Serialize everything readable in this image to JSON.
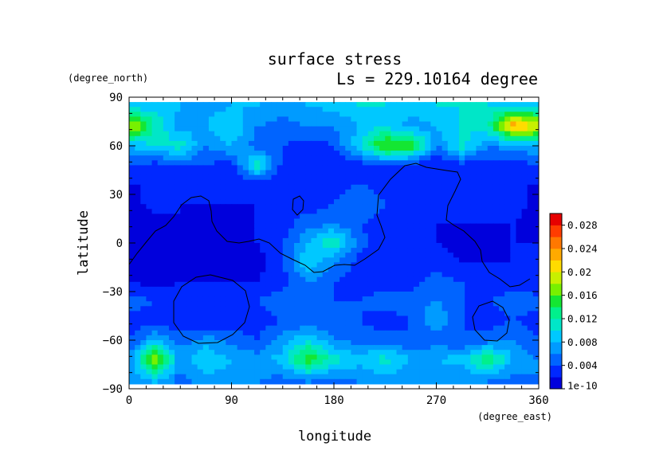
{
  "chart_data": {
    "type": "heatmap",
    "title": "surface stress",
    "subtitle": "Ls = 229.10164 degree",
    "xlabel": "longitude",
    "ylabel": "latitude",
    "x_unit": "(degree_east)",
    "y_unit": "(degree_north)",
    "xlim": [
      0,
      360
    ],
    "ylim": [
      -90,
      90
    ],
    "xticks": [
      "0",
      "90",
      "180",
      "270",
      "360"
    ],
    "yticks": [
      "90",
      "60",
      "30",
      "0",
      "−30",
      "−60",
      "−90"
    ],
    "grid": false,
    "colorbar": {
      "ticks": [
        "0.028",
        "0.024",
        "0.02",
        "0.016",
        "0.012",
        "0.008",
        "0.004",
        "1e-10"
      ],
      "min": 0,
      "max": 0.03,
      "colors": [
        "#0000dc",
        "#0028ff",
        "#0064ff",
        "#009bff",
        "#00c8ff",
        "#00e6c8",
        "#00f08c",
        "#14e632",
        "#78f000",
        "#c8f000",
        "#ffdc00",
        "#ffaa00",
        "#ff7800",
        "#ff3c00",
        "#e60000"
      ]
    },
    "grid_lon": [
      0,
      22.5,
      45,
      67.5,
      90,
      112.5,
      135,
      157.5,
      180,
      202.5,
      225,
      247.5,
      270,
      292.5,
      315,
      337.5,
      360
    ],
    "grid_lat": [
      85,
      72,
      60,
      48,
      36,
      24,
      12,
      0,
      -12,
      -24,
      -36,
      -48,
      -60,
      -72,
      -85
    ],
    "values": [
      [
        0.008,
        0.009,
        0.008,
        0.007,
        0.008,
        0.008,
        0.007,
        0.008,
        0.009,
        0.01,
        0.01,
        0.009,
        0.01,
        0.01,
        0.01,
        0.009,
        0.009
      ],
      [
        0.02,
        0.012,
        0.007,
        0.008,
        0.01,
        0.006,
        0.005,
        0.006,
        0.006,
        0.008,
        0.01,
        0.007,
        0.008,
        0.01,
        0.011,
        0.024,
        0.02
      ],
      [
        0.008,
        0.01,
        0.011,
        0.006,
        0.008,
        0.005,
        0.004,
        0.003,
        0.004,
        0.01,
        0.017,
        0.016,
        0.006,
        0.011,
        0.006,
        0.007,
        0.008
      ],
      [
        0.004,
        0.003,
        0.004,
        0.004,
        0.003,
        0.012,
        0.003,
        0.002,
        0.002,
        0.003,
        0.004,
        0.003,
        0.002,
        0.003,
        0.003,
        0.003,
        0.004
      ],
      [
        0.002,
        0.002,
        0.002,
        0.003,
        0.002,
        0.002,
        0.002,
        0.003,
        0.003,
        0.004,
        0.003,
        0.004,
        0.003,
        0.002,
        0.002,
        0.002,
        0.002
      ],
      [
        0.001,
        0.003,
        0.002,
        0.002,
        0.002,
        0.002,
        0.004,
        0.003,
        0.004,
        0.006,
        0.004,
        0.003,
        0.002,
        0.003,
        0.002,
        0.003,
        0.001
      ],
      [
        0.001,
        0.001,
        0.002,
        0.001,
        0.001,
        0.002,
        0.003,
        0.005,
        0.006,
        0.004,
        0.003,
        0.002,
        0.002,
        0.002,
        0.002,
        0.002,
        0.001
      ],
      [
        0.002,
        0.001,
        0.001,
        0.001,
        0.001,
        0.002,
        0.004,
        0.008,
        0.012,
        0.005,
        0.002,
        0.002,
        0.002,
        0.001,
        0.001,
        0.002,
        0.002
      ],
      [
        0.002,
        0.001,
        0.001,
        0.001,
        0.001,
        0.001,
        0.004,
        0.01,
        0.006,
        0.003,
        0.002,
        0.002,
        0.003,
        0.002,
        0.002,
        0.002,
        0.002
      ],
      [
        0.002,
        0.001,
        0.002,
        0.002,
        0.002,
        0.002,
        0.003,
        0.006,
        0.004,
        0.003,
        0.003,
        0.003,
        0.005,
        0.004,
        0.003,
        0.003,
        0.002
      ],
      [
        0.005,
        0.004,
        0.004,
        0.003,
        0.004,
        0.004,
        0.006,
        0.005,
        0.004,
        0.004,
        0.005,
        0.005,
        0.006,
        0.004,
        0.004,
        0.005,
        0.005
      ],
      [
        0.003,
        0.003,
        0.002,
        0.002,
        0.003,
        0.003,
        0.004,
        0.004,
        0.005,
        0.004,
        0.003,
        0.004,
        0.008,
        0.004,
        0.003,
        0.004,
        0.003
      ],
      [
        0.004,
        0.008,
        0.005,
        0.007,
        0.005,
        0.004,
        0.007,
        0.01,
        0.006,
        0.005,
        0.005,
        0.004,
        0.005,
        0.004,
        0.005,
        0.006,
        0.004
      ],
      [
        0.006,
        0.019,
        0.007,
        0.01,
        0.008,
        0.007,
        0.009,
        0.016,
        0.011,
        0.009,
        0.011,
        0.008,
        0.008,
        0.009,
        0.014,
        0.008,
        0.006
      ],
      [
        0.006,
        0.008,
        0.005,
        0.007,
        0.007,
        0.006,
        0.005,
        0.006,
        0.005,
        0.006,
        0.007,
        0.006,
        0.006,
        0.006,
        0.006,
        0.005,
        0.006
      ]
    ]
  }
}
